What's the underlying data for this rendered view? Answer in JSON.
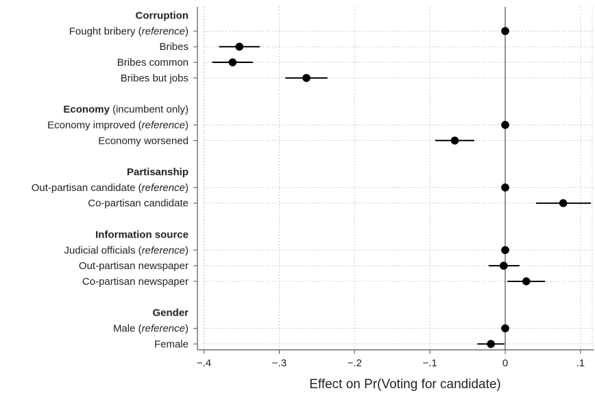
{
  "chart_data": {
    "type": "scatter",
    "subtype": "coefficient-plot",
    "xlabel": "Effect on Pr(Voting for candidate)",
    "xlim": [
      -0.4,
      0.12
    ],
    "xticks": [
      {
        "value": -0.4,
        "label": "−.4"
      },
      {
        "value": -0.3,
        "label": "−.3"
      },
      {
        "value": -0.2,
        "label": "−.2"
      },
      {
        "value": -0.1,
        "label": "−.1"
      },
      {
        "value": 0,
        "label": "0"
      },
      {
        "value": 0.1,
        "label": ".1"
      }
    ],
    "grid": true,
    "reference_line": 0,
    "rows": [
      {
        "kind": "header",
        "bold": "Corruption",
        "rest": ""
      },
      {
        "kind": "item",
        "pre": "Fought bribery (",
        "it": "reference",
        "post": ")",
        "est": 0,
        "lo": 0,
        "hi": 0
      },
      {
        "kind": "item",
        "pre": "Bribes",
        "it": "",
        "post": "",
        "est": -0.353,
        "lo": -0.38,
        "hi": -0.326
      },
      {
        "kind": "item",
        "pre": "Bribes common",
        "it": "",
        "post": "",
        "est": -0.362,
        "lo": -0.389,
        "hi": -0.335
      },
      {
        "kind": "item",
        "pre": "Bribes but jobs",
        "it": "",
        "post": "",
        "est": -0.264,
        "lo": -0.292,
        "hi": -0.236
      },
      {
        "kind": "spacer"
      },
      {
        "kind": "header",
        "bold": "Economy",
        "rest": " (incumbent only)"
      },
      {
        "kind": "item",
        "pre": "Economy improved (",
        "it": "reference",
        "post": ")",
        "est": 0,
        "lo": 0,
        "hi": 0
      },
      {
        "kind": "item",
        "pre": "Economy worsened",
        "it": "",
        "post": "",
        "est": -0.067,
        "lo": -0.093,
        "hi": -0.041
      },
      {
        "kind": "spacer"
      },
      {
        "kind": "header",
        "bold": "Partisanship",
        "rest": ""
      },
      {
        "kind": "item",
        "pre": "Out-partisan candidate (",
        "it": "reference",
        "post": ")",
        "est": 0,
        "lo": 0,
        "hi": 0
      },
      {
        "kind": "item",
        "pre": "Co-partisan candidate",
        "it": "",
        "post": "",
        "est": 0.077,
        "lo": 0.041,
        "hi": 0.114
      },
      {
        "kind": "spacer"
      },
      {
        "kind": "header",
        "bold": "Information source",
        "rest": ""
      },
      {
        "kind": "item",
        "pre": "Judicial officials (",
        "it": "reference",
        "post": ")",
        "est": 0,
        "lo": 0,
        "hi": 0
      },
      {
        "kind": "item",
        "pre": "Out-partisan newspaper",
        "it": "",
        "post": "",
        "est": -0.002,
        "lo": -0.022,
        "hi": 0.019
      },
      {
        "kind": "item",
        "pre": "Co-partisan newspaper",
        "it": "",
        "post": "",
        "est": 0.028,
        "lo": 0.003,
        "hi": 0.053
      },
      {
        "kind": "spacer"
      },
      {
        "kind": "header",
        "bold": "Gender",
        "rest": ""
      },
      {
        "kind": "item",
        "pre": "Male (",
        "it": "reference",
        "post": ")",
        "est": 0,
        "lo": 0,
        "hi": 0
      },
      {
        "kind": "item",
        "pre": "Female",
        "it": "",
        "post": "",
        "est": -0.019,
        "lo": -0.037,
        "hi": -0.001
      }
    ],
    "colors": {
      "marker": "#000000",
      "grid": "#b8b8b8",
      "axis": "#555555"
    }
  }
}
